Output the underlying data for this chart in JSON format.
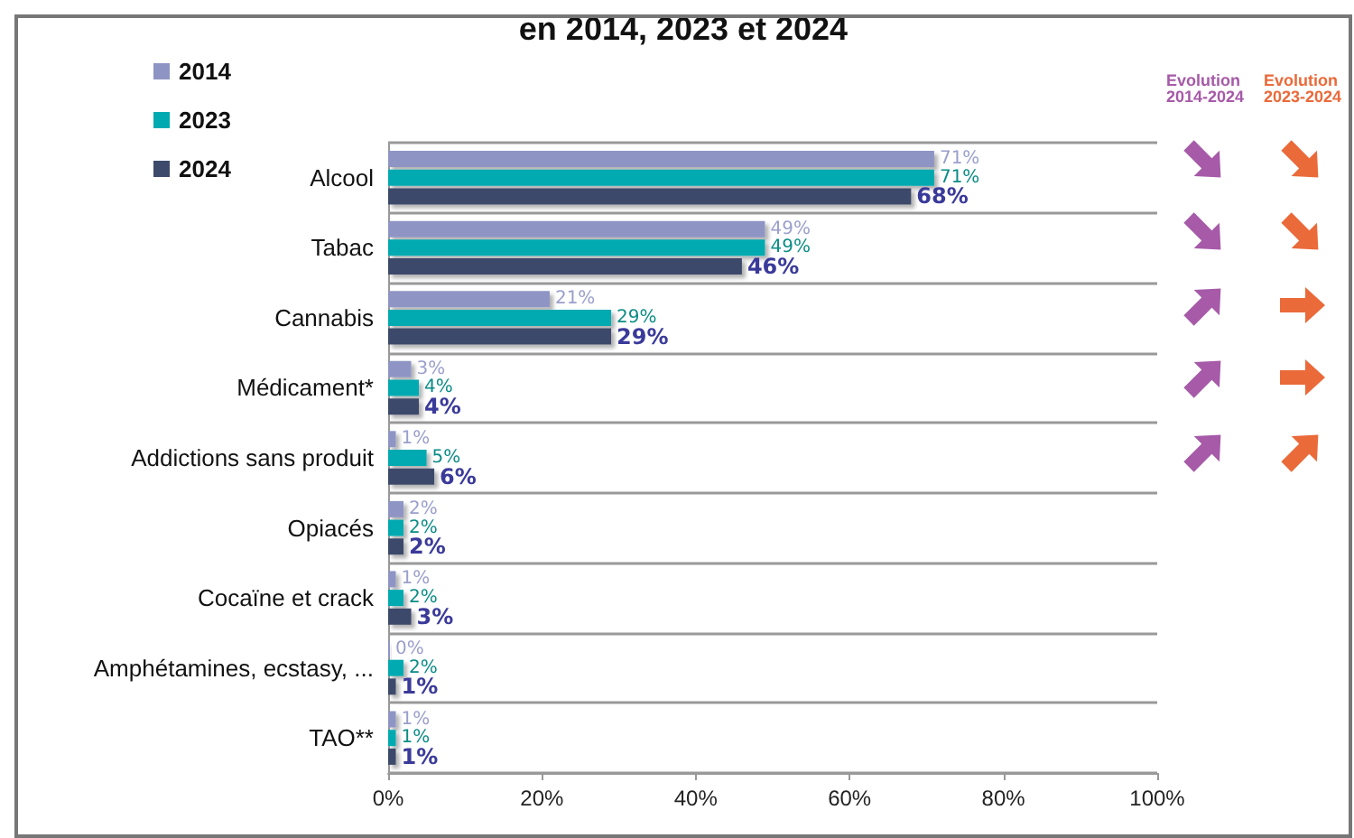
{
  "chart_data": {
    "type": "bar",
    "orientation": "horizontal",
    "title": "en 2014, 2023 et 2024",
    "categories": [
      "Alcool",
      "Tabac",
      "Cannabis",
      "Médicament*",
      "Addictions sans produit",
      "Opiacés",
      "Cocaïne et crack",
      "Amphétamines, ecstasy, ...",
      "TAO**"
    ],
    "series": [
      {
        "name": "2014",
        "color": "#8e95c4",
        "values": [
          71,
          49,
          21,
          3,
          1,
          2,
          1,
          0,
          1
        ],
        "value_labels": [
          "71%",
          "49%",
          "21%",
          "3%",
          "1%",
          "2%",
          "1%",
          "0%",
          "1%"
        ]
      },
      {
        "name": "2023",
        "color": "#00aab0",
        "values": [
          71,
          49,
          29,
          4,
          5,
          2,
          2,
          2,
          1
        ],
        "value_labels": [
          "71%",
          "49%",
          "29%",
          "4%",
          "5%",
          "2%",
          "2%",
          "2%",
          "1%"
        ]
      },
      {
        "name": "2024",
        "color": "#3d4a6b",
        "values": [
          68,
          46,
          29,
          4,
          6,
          2,
          3,
          1,
          1
        ],
        "value_labels": [
          "68%",
          "46%",
          "29%",
          "4%",
          "6%",
          "2%",
          "3%",
          "1%",
          "1%"
        ]
      }
    ],
    "xlim": [
      0,
      100
    ],
    "xticks": [
      {
        "value": 0,
        "label": "0%"
      },
      {
        "value": 20,
        "label": "20%"
      },
      {
        "value": 40,
        "label": "40%"
      },
      {
        "value": 60,
        "label": "60%"
      },
      {
        "value": 80,
        "label": "80%"
      },
      {
        "value": 100,
        "label": "100%"
      }
    ],
    "grid": "y",
    "legend": "top left",
    "annotations": [
      "Evolution\n2014-2024",
      "Evolution\n2023-2024"
    ]
  }
}
